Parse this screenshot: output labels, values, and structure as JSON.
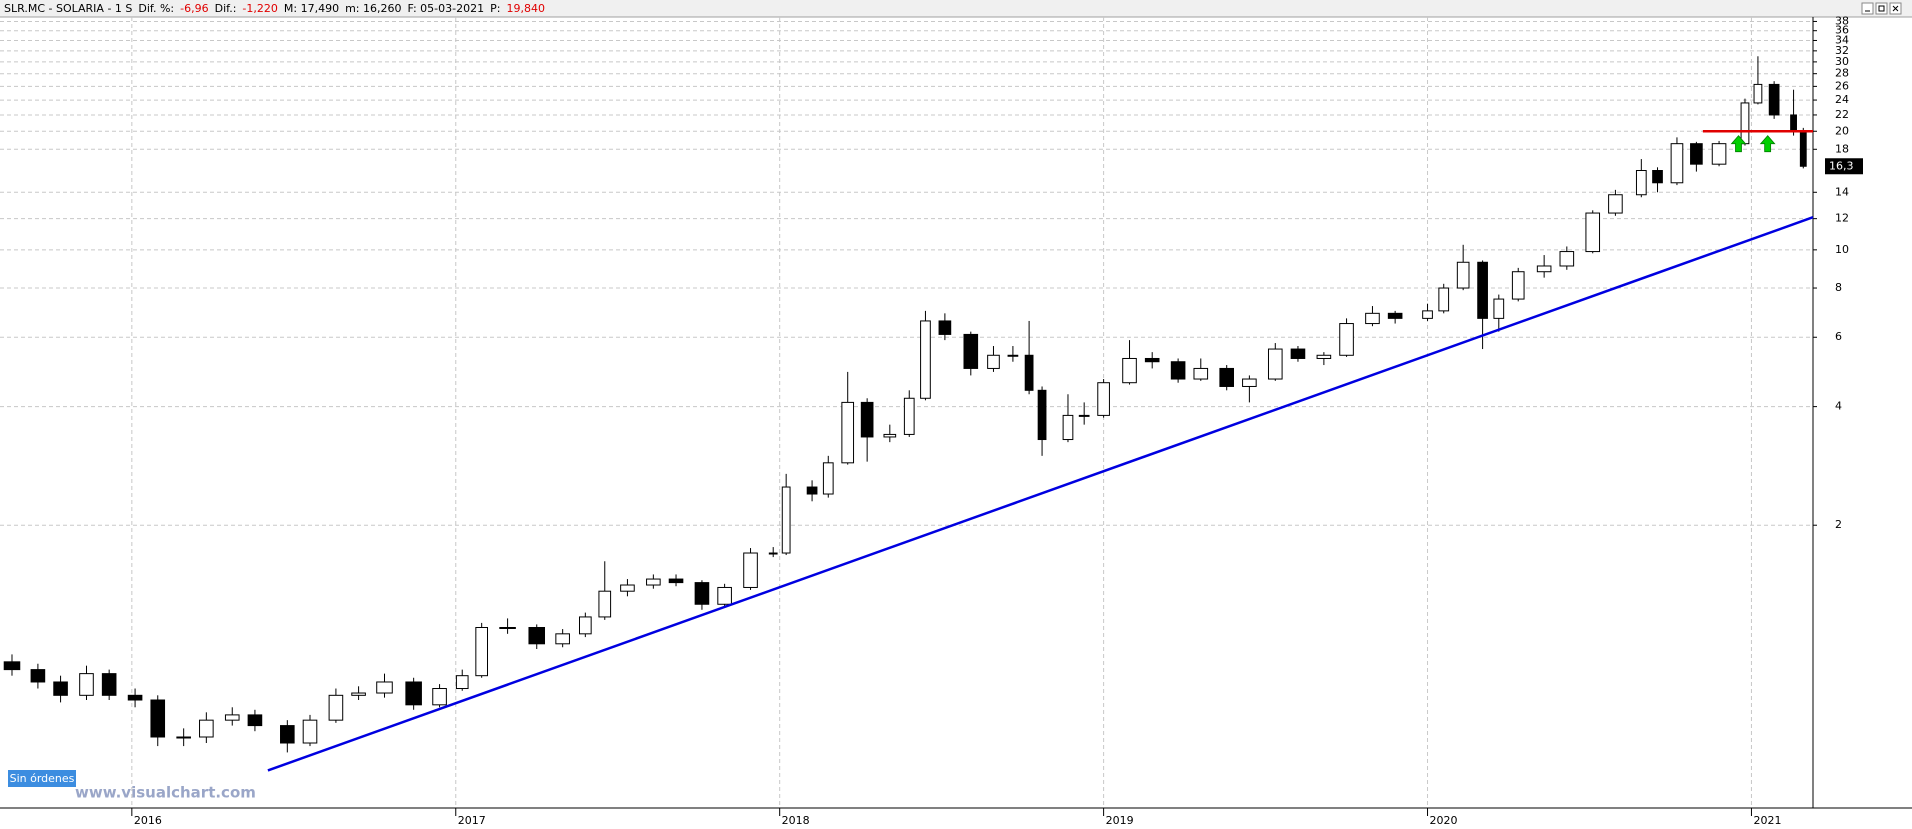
{
  "header": [
    {
      "text": "SLR.MC - SOLARIA -  1 S",
      "color": "#000000"
    },
    {
      "text": "Dif. %:",
      "color": "#000000"
    },
    {
      "text": "-6,96",
      "color": "#e00000"
    },
    {
      "text": "Dif.:",
      "color": "#000000"
    },
    {
      "text": "-1,220",
      "color": "#e00000"
    },
    {
      "text": "M: 17,490",
      "color": "#000000"
    },
    {
      "text": "m: 16,260",
      "color": "#000000"
    },
    {
      "text": "F: 05-03-2021",
      "color": "#000000"
    },
    {
      "text": "P:",
      "color": "#000000"
    },
    {
      "text": "19,840",
      "color": "#e00000"
    }
  ],
  "button": "Sin órdenes",
  "watermark": "www.visualchart.com",
  "chart_data": {
    "type": "candlestick",
    "log_scale": true,
    "grid": true,
    "xlim": [
      2015.593,
      2021.19
    ],
    "xticks": [
      2016,
      2017,
      2018,
      2019,
      2020,
      2021
    ],
    "ylim": [
      0.383,
      39
    ],
    "yticks": [
      2,
      4,
      6,
      8,
      10,
      12,
      14,
      18,
      20,
      22,
      24,
      26,
      28,
      30,
      32,
      34,
      36,
      38
    ],
    "last_price": 16.3,
    "last_price_label": "16,3",
    "x": [
      2015.63,
      2015.71,
      2015.78,
      2015.86,
      2015.93,
      2016.01,
      2016.08,
      2016.16,
      2016.23,
      2016.31,
      2016.38,
      2016.48,
      2016.55,
      2016.63,
      2016.7,
      2016.78,
      2016.87,
      2016.95,
      2017.02,
      2017.08,
      2017.16,
      2017.25,
      2017.33,
      2017.4,
      2017.46,
      2017.53,
      2017.61,
      2017.68,
      2017.76,
      2017.83,
      2017.91,
      2017.98,
      2018.02,
      2018.1,
      2018.15,
      2018.21,
      2018.27,
      2018.34,
      2018.4,
      2018.45,
      2018.51,
      2018.59,
      2018.66,
      2018.72,
      2018.77,
      2018.81,
      2018.89,
      2018.94,
      2019.0,
      2019.08,
      2019.15,
      2019.23,
      2019.3,
      2019.38,
      2019.45,
      2019.53,
      2019.6,
      2019.68,
      2019.75,
      2019.83,
      2019.9,
      2020.0,
      2020.05,
      2020.11,
      2020.17,
      2020.22,
      2020.28,
      2020.36,
      2020.43,
      2020.51,
      2020.58,
      2020.66,
      2020.71,
      2020.77,
      2020.83,
      2020.9,
      2020.98,
      2021.02,
      2021.07,
      2021.13,
      2021.16
    ],
    "open": [
      0.9,
      0.86,
      0.8,
      0.74,
      0.84,
      0.74,
      0.72,
      0.58,
      0.58,
      0.64,
      0.66,
      0.62,
      0.56,
      0.64,
      0.74,
      0.75,
      0.8,
      0.7,
      0.77,
      0.83,
      1.1,
      1.1,
      1.0,
      1.06,
      1.17,
      1.36,
      1.41,
      1.46,
      1.43,
      1.26,
      1.39,
      1.7,
      1.7,
      2.5,
      2.4,
      2.88,
      4.1,
      3.35,
      3.4,
      4.2,
      6.6,
      6.1,
      5.0,
      5.4,
      5.4,
      4.4,
      3.3,
      3.8,
      3.8,
      4.6,
      5.3,
      5.2,
      4.7,
      5.0,
      4.5,
      4.7,
      5.6,
      5.3,
      5.4,
      6.5,
      6.9,
      6.7,
      7.0,
      8.0,
      9.3,
      6.7,
      7.5,
      8.8,
      9.1,
      9.9,
      12.4,
      13.8,
      15.9,
      14.8,
      18.6,
      16.5,
      18.6,
      23.6,
      26.3,
      22.0,
      20.0
    ],
    "high": [
      0.94,
      0.89,
      0.83,
      0.88,
      0.86,
      0.77,
      0.74,
      0.61,
      0.67,
      0.69,
      0.68,
      0.64,
      0.66,
      0.77,
      0.78,
      0.84,
      0.82,
      0.79,
      0.86,
      1.13,
      1.16,
      1.12,
      1.09,
      1.2,
      1.62,
      1.46,
      1.5,
      1.5,
      1.45,
      1.42,
      1.75,
      1.76,
      2.7,
      2.6,
      3.0,
      4.9,
      4.2,
      3.6,
      4.4,
      7.0,
      6.9,
      6.2,
      5.7,
      5.7,
      6.6,
      4.5,
      4.3,
      4.1,
      4.7,
      5.9,
      5.5,
      5.3,
      5.3,
      5.1,
      4.8,
      5.8,
      5.7,
      5.5,
      6.7,
      7.2,
      7.0,
      7.3,
      8.2,
      10.3,
      9.4,
      7.7,
      9.0,
      9.7,
      10.2,
      12.6,
      14.2,
      17.0,
      16.2,
      19.3,
      18.8,
      18.9,
      24.2,
      31.0,
      26.8,
      25.5,
      20.4
    ],
    "low": [
      0.83,
      0.77,
      0.71,
      0.72,
      0.72,
      0.69,
      0.55,
      0.55,
      0.56,
      0.62,
      0.6,
      0.53,
      0.55,
      0.63,
      0.72,
      0.73,
      0.68,
      0.69,
      0.76,
      0.82,
      1.06,
      0.97,
      0.98,
      1.04,
      1.15,
      1.32,
      1.38,
      1.4,
      1.22,
      1.24,
      1.37,
      1.66,
      1.68,
      2.3,
      2.35,
      2.85,
      2.9,
      3.25,
      3.35,
      4.15,
      5.9,
      4.8,
      4.9,
      5.2,
      4.3,
      3.0,
      3.25,
      3.6,
      3.75,
      4.55,
      5.0,
      4.6,
      4.65,
      4.4,
      4.1,
      4.65,
      5.2,
      5.1,
      5.35,
      6.4,
      6.5,
      6.6,
      6.9,
      7.9,
      5.6,
      6.2,
      7.4,
      8.5,
      8.9,
      9.8,
      12.2,
      13.6,
      14.0,
      14.6,
      15.8,
      16.3,
      18.4,
      23.4,
      21.5,
      19.5,
      16.1
    ],
    "close": [
      0.86,
      0.8,
      0.74,
      0.84,
      0.74,
      0.72,
      0.58,
      0.58,
      0.64,
      0.66,
      0.62,
      0.56,
      0.64,
      0.74,
      0.75,
      0.8,
      0.7,
      0.77,
      0.83,
      1.1,
      1.1,
      1.0,
      1.06,
      1.17,
      1.36,
      1.41,
      1.46,
      1.43,
      1.26,
      1.39,
      1.7,
      1.7,
      2.5,
      2.4,
      2.88,
      4.1,
      3.35,
      3.4,
      4.2,
      6.6,
      6.1,
      5.0,
      5.4,
      5.4,
      4.4,
      3.3,
      3.8,
      3.8,
      4.6,
      5.3,
      5.2,
      4.7,
      5.0,
      4.5,
      4.7,
      5.6,
      5.3,
      5.4,
      6.5,
      6.9,
      6.7,
      7.0,
      8.0,
      9.3,
      6.7,
      7.5,
      8.8,
      9.1,
      9.9,
      12.4,
      13.8,
      15.9,
      14.8,
      18.6,
      16.5,
      18.6,
      23.6,
      26.3,
      22.0,
      20.0,
      16.3
    ],
    "lines": [
      {
        "color": "#0000e0",
        "x": [
          2016.42,
          2021.19
        ],
        "y": [
          0.477,
          12.1
        ]
      },
      {
        "color": "#e00000",
        "x": [
          2020.85,
          2021.19
        ],
        "y": [
          20,
          20
        ]
      }
    ],
    "signals": {
      "color": "#00d000",
      "x": [
        2020.96,
        2021.05
      ],
      "y": [
        18.6,
        18.6
      ]
    }
  }
}
